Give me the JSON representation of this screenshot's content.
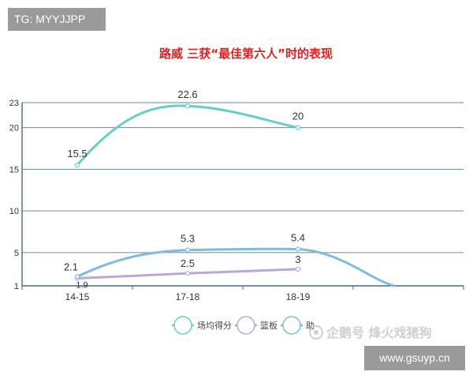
{
  "watermarks": {
    "top": "TG: MYYJJPP",
    "bottom": "www.gsuyp.cn",
    "brand": "企鹅号 烽火戏猪狗"
  },
  "colors": {
    "title": "#e02020",
    "axis": "#3d6f80",
    "grid": "#5f8f9a",
    "series_points": "#66cccc",
    "series_rebounds": "#b8a8d8",
    "series_assists": "#7dbcdf"
  },
  "chart_data": {
    "type": "line",
    "title": "路威   三获“最佳第六人”时的表现",
    "categories": [
      "14-15",
      "17-18",
      "18-19"
    ],
    "yticks": [
      1,
      5,
      10,
      15,
      20,
      23
    ],
    "ylim": [
      1,
      23
    ],
    "grid": true,
    "legend_position": "bottom",
    "series": [
      {
        "name": "场均得分",
        "values": [
          15.5,
          22.6,
          20
        ],
        "labels": [
          "15.5",
          "22.6",
          "20"
        ]
      },
      {
        "name": "篮板",
        "values": [
          1.9,
          2.5,
          3
        ],
        "labels": [
          "1.9",
          "2.5",
          "3"
        ]
      },
      {
        "name": "助攻",
        "values": [
          2.1,
          5.3,
          5.4
        ],
        "labels": [
          "2.1",
          "5.3",
          "5.4"
        ]
      }
    ],
    "legend_labels": [
      "场均得分",
      "篮板",
      "助"
    ]
  }
}
